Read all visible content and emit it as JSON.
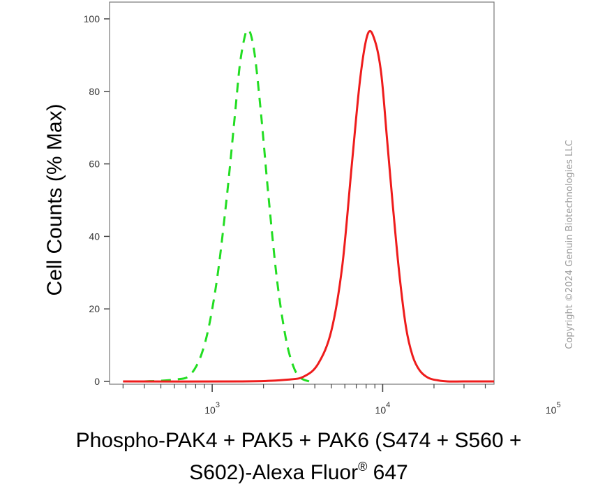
{
  "chart_data": {
    "type": "line",
    "title": "",
    "xlabel_line1": "Phospho-PAK4 + PAK5 + PAK6 (S474 + S560 +",
    "xlabel_line2_pre": "S602)-Alexa Fluor",
    "xlabel_line2_sup": "®",
    "xlabel_line2_post": " 647",
    "ylabel": "Cell Counts (% Max)",
    "x_scale": "log",
    "xlim": [
      250,
      45000
    ],
    "ylim": [
      0,
      105
    ],
    "x_ticks": [
      {
        "base": "10",
        "exp": "3",
        "value": 1000
      },
      {
        "base": "10",
        "exp": "4",
        "value": 10000
      },
      {
        "base": "10",
        "exp": "5",
        "value": 100000
      }
    ],
    "y_ticks": [
      0,
      20,
      40,
      60,
      80,
      100
    ],
    "grid": false,
    "series": [
      {
        "color": "#22dd22",
        "style": "dashed",
        "x": [
          400,
          600,
          750,
          900,
          1050,
          1200,
          1350,
          1450,
          1550,
          1620,
          1700,
          1800,
          1950,
          2150,
          2400,
          2700,
          3000,
          3300,
          3700
        ],
        "y": [
          0,
          0.5,
          2,
          10,
          26,
          48,
          72,
          87,
          95,
          97,
          95,
          88,
          72,
          50,
          28,
          12,
          4,
          1,
          0
        ]
      },
      {
        "color": "#ee1c1c",
        "style": "solid",
        "x": [
          300,
          1500,
          2800,
          3500,
          4200,
          5000,
          5800,
          6600,
          7400,
          8200,
          9000,
          9800,
          10600,
          11500,
          12500,
          13700,
          15000,
          16500,
          18500,
          21000,
          24000,
          30000,
          45000
        ],
        "y": [
          0,
          0,
          0.5,
          1.5,
          5,
          14,
          32,
          60,
          84,
          96,
          94,
          85,
          67,
          48,
          30,
          15,
          7,
          3,
          1,
          0.3,
          0,
          0,
          0
        ]
      }
    ]
  },
  "watermark": "Copyright ©2024 Genuin Biotechnologies LLC"
}
